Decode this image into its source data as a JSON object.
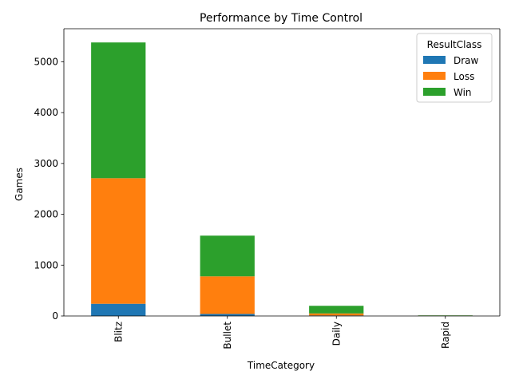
{
  "chart_data": {
    "type": "bar",
    "stacked": true,
    "title": "Performance by Time Control",
    "xlabel": "TimeCategory",
    "ylabel": "Games",
    "categories": [
      "Blitz",
      "Bullet",
      "Daily",
      "Rapid"
    ],
    "ylim": [
      0,
      5650
    ],
    "yticks": [
      0,
      1000,
      2000,
      3000,
      4000,
      5000
    ],
    "grid": false,
    "legend": {
      "title": "ResultClass",
      "placement": "top-right"
    },
    "series": [
      {
        "name": "Draw",
        "color": "#1f77b4",
        "values": [
          240,
          40,
          10,
          2
        ]
      },
      {
        "name": "Loss",
        "color": "#ff7f0e",
        "values": [
          2470,
          740,
          40,
          4
        ]
      },
      {
        "name": "Win",
        "color": "#2ca02c",
        "values": [
          2670,
          800,
          150,
          6
        ]
      }
    ]
  }
}
